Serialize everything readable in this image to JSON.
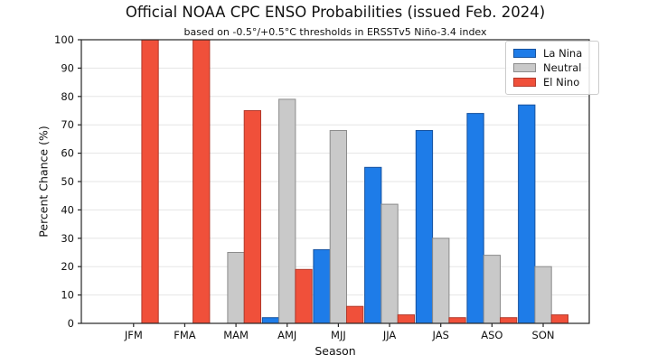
{
  "chart_data": {
    "type": "bar",
    "title": "Official NOAA CPC ENSO Probabilities (issued Feb. 2024)",
    "subtitle": "based on -0.5°/+0.5°C thresholds in ERSSTv5 Niño-3.4 index",
    "xlabel": "Season",
    "ylabel": "Percent Chance (%)",
    "categories": [
      "JFM",
      "FMA",
      "MAM",
      "AMJ",
      "MJJ",
      "JJA",
      "JAS",
      "ASO",
      "SON"
    ],
    "series": [
      {
        "name": "La Nina",
        "color": "#1e7ce8",
        "edge_color": "#15519e",
        "values": [
          0,
          0,
          0,
          2,
          26,
          55,
          68,
          74,
          77
        ]
      },
      {
        "name": "Neutral",
        "color": "#c9c9c9",
        "edge_color": "#8c8c8c",
        "values": [
          0,
          0,
          25,
          79,
          68,
          42,
          30,
          24,
          20
        ]
      },
      {
        "name": "El Nino",
        "color": "#f0503a",
        "edge_color": "#b2392b",
        "values": [
          100,
          100,
          75,
          19,
          6,
          3,
          2,
          2,
          3
        ]
      }
    ],
    "ylim": [
      0,
      100
    ],
    "yticks": [
      0,
      10,
      20,
      30,
      40,
      50,
      60,
      70,
      80,
      90,
      100
    ],
    "grid": true,
    "legend_position": "upper right",
    "gridline_color": "#e5e5e5",
    "spine_color": "#262626",
    "text_color": "#111111"
  }
}
